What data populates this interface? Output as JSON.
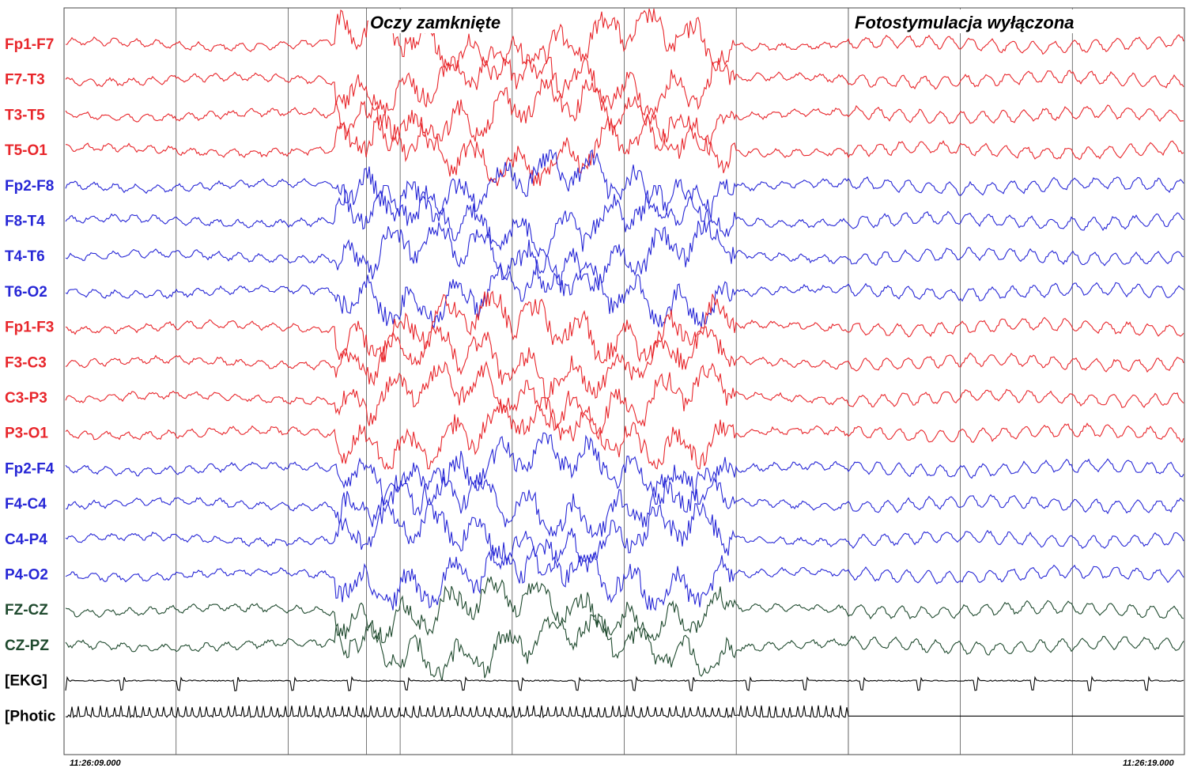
{
  "colors": {
    "left": "#e8262b",
    "right": "#2727d6",
    "midline": "#1f4a2e",
    "aux": "#000000",
    "grid": "#555555"
  },
  "annotations": {
    "eyes_closed": "Oczy zamknięte",
    "photic_off": "Fotostymulacja wyłączona"
  },
  "time": {
    "start": "11:26:09.000",
    "end": "11:26:19.000"
  },
  "chart_data": {
    "type": "line",
    "title": "",
    "x_range_seconds": [
      0,
      10
    ],
    "time_start": "11:26:09.000",
    "time_end": "11:26:19.000",
    "events": [
      {
        "label": "Oczy zamknięte",
        "time_s": 2.7
      },
      {
        "label": "Fotostymulacja wyłączona",
        "time_s": 7.0
      }
    ],
    "channels": [
      {
        "name": "Fp1-F7",
        "group": "left"
      },
      {
        "name": "F7-T3",
        "group": "left"
      },
      {
        "name": "T3-T5",
        "group": "left"
      },
      {
        "name": "T5-O1",
        "group": "left"
      },
      {
        "name": "Fp2-F8",
        "group": "right"
      },
      {
        "name": "F8-T4",
        "group": "right"
      },
      {
        "name": "T4-T6",
        "group": "right"
      },
      {
        "name": "T6-O2",
        "group": "right"
      },
      {
        "name": "Fp1-F3",
        "group": "left"
      },
      {
        "name": "F3-C3",
        "group": "left"
      },
      {
        "name": "C3-P3",
        "group": "left"
      },
      {
        "name": "P3-O1",
        "group": "left"
      },
      {
        "name": "Fp2-F4",
        "group": "right"
      },
      {
        "name": "F4-C4",
        "group": "right"
      },
      {
        "name": "C4-P4",
        "group": "right"
      },
      {
        "name": "P4-O2",
        "group": "right"
      },
      {
        "name": "FZ-CZ",
        "group": "midline"
      },
      {
        "name": "CZ-PZ",
        "group": "midline"
      },
      {
        "name": "[EKG]",
        "group": "aux"
      },
      {
        "name": "[Photic",
        "group": "aux"
      }
    ]
  }
}
